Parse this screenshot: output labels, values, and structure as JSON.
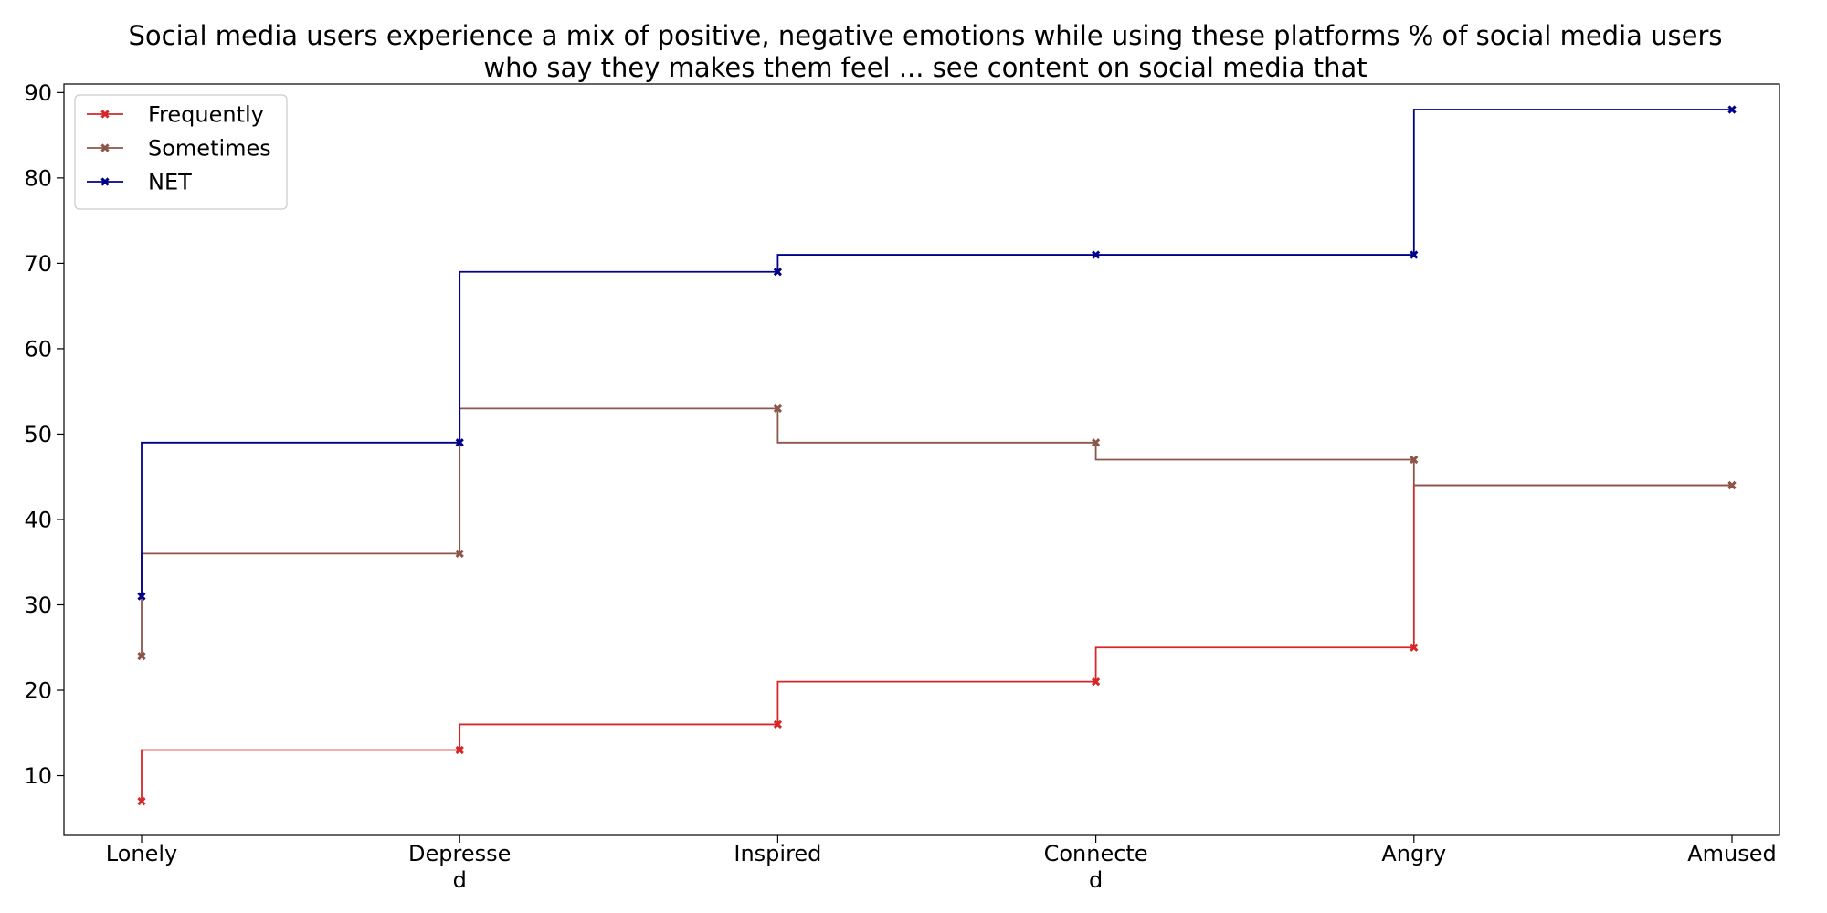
{
  "chart_data": {
    "type": "line",
    "step": "post",
    "title_lines": [
      "Social media users experience a mix of positive, negative emotions while using these platforms % of social media users",
      "who say they makes them feel ... see content on social media that"
    ],
    "categories": [
      "Lonely",
      "Depressed",
      "Inspired",
      "Connected",
      "Angry",
      "Amused"
    ],
    "category_tick_lines": [
      [
        "Lonely"
      ],
      [
        "Depresse",
        "d"
      ],
      [
        "Inspired"
      ],
      [
        "Connecte",
        "d"
      ],
      [
        "Angry"
      ],
      [
        "Amused"
      ]
    ],
    "series": [
      {
        "name": "Frequently",
        "color": "#d62728",
        "values": [
          7,
          13,
          16,
          21,
          25,
          44
        ]
      },
      {
        "name": "Sometimes",
        "color": "#8c564b",
        "values": [
          24,
          36,
          53,
          49,
          47,
          44
        ]
      },
      {
        "name": "NET",
        "color": "#00008b",
        "values": [
          31,
          49,
          69,
          71,
          71,
          88
        ]
      }
    ],
    "xlabel": "",
    "ylabel": "",
    "ylim": [
      3,
      91
    ],
    "yticks": [
      10,
      20,
      30,
      40,
      50,
      60,
      70,
      80,
      90
    ],
    "legend_position": "top-left",
    "grid": false,
    "marker": "x-filled"
  }
}
